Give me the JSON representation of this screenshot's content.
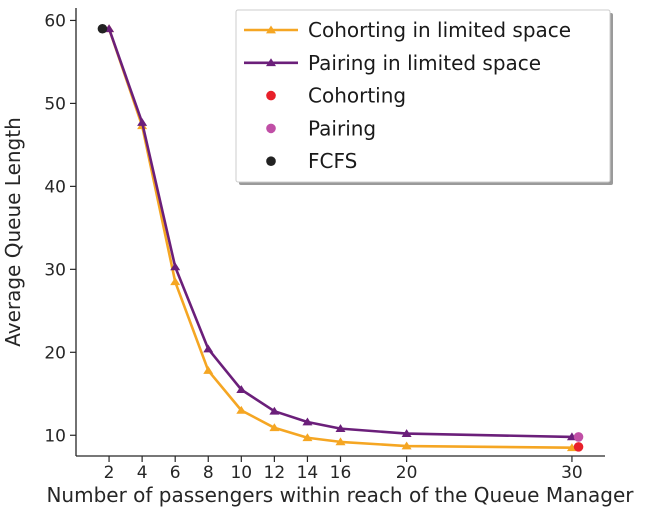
{
  "chart_data": {
    "type": "line",
    "title": "",
    "xlabel": "Number of passengers within reach of the Queue Manager",
    "ylabel": "Average Queue Length",
    "xlim": [
      0,
      32
    ],
    "ylim": [
      7.5,
      61.5
    ],
    "xticks": [
      2,
      4,
      6,
      8,
      10,
      12,
      14,
      16,
      20,
      30
    ],
    "yticks": [
      10,
      20,
      30,
      40,
      50,
      60
    ],
    "grid": false,
    "legend_position": "top-right",
    "series": [
      {
        "name": "Cohorting in limited space",
        "kind": "line",
        "marker": "triangle",
        "color": "#f5a623",
        "x": [
          2,
          4,
          6,
          8,
          10,
          12,
          14,
          16,
          20,
          30
        ],
        "y": [
          59.0,
          47.3,
          28.5,
          17.8,
          13.0,
          10.9,
          9.7,
          9.2,
          8.7,
          8.5
        ]
      },
      {
        "name": "Pairing in limited space",
        "kind": "line",
        "marker": "triangle",
        "color": "#6b1f7a",
        "x": [
          2,
          4,
          6,
          8,
          10,
          12,
          14,
          16,
          20,
          30
        ],
        "y": [
          59.0,
          47.7,
          30.3,
          20.4,
          15.5,
          12.9,
          11.6,
          10.8,
          10.2,
          9.8
        ]
      },
      {
        "name": "Cohorting",
        "kind": "point",
        "color": "#e8202a",
        "x": [
          30.4
        ],
        "y": [
          8.6
        ]
      },
      {
        "name": "Pairing",
        "kind": "point",
        "color": "#c04fa6",
        "x": [
          30.4
        ],
        "y": [
          9.8
        ]
      },
      {
        "name": "FCFS",
        "kind": "point",
        "color": "#222222",
        "x": [
          1.6
        ],
        "y": [
          59.0
        ]
      }
    ]
  }
}
